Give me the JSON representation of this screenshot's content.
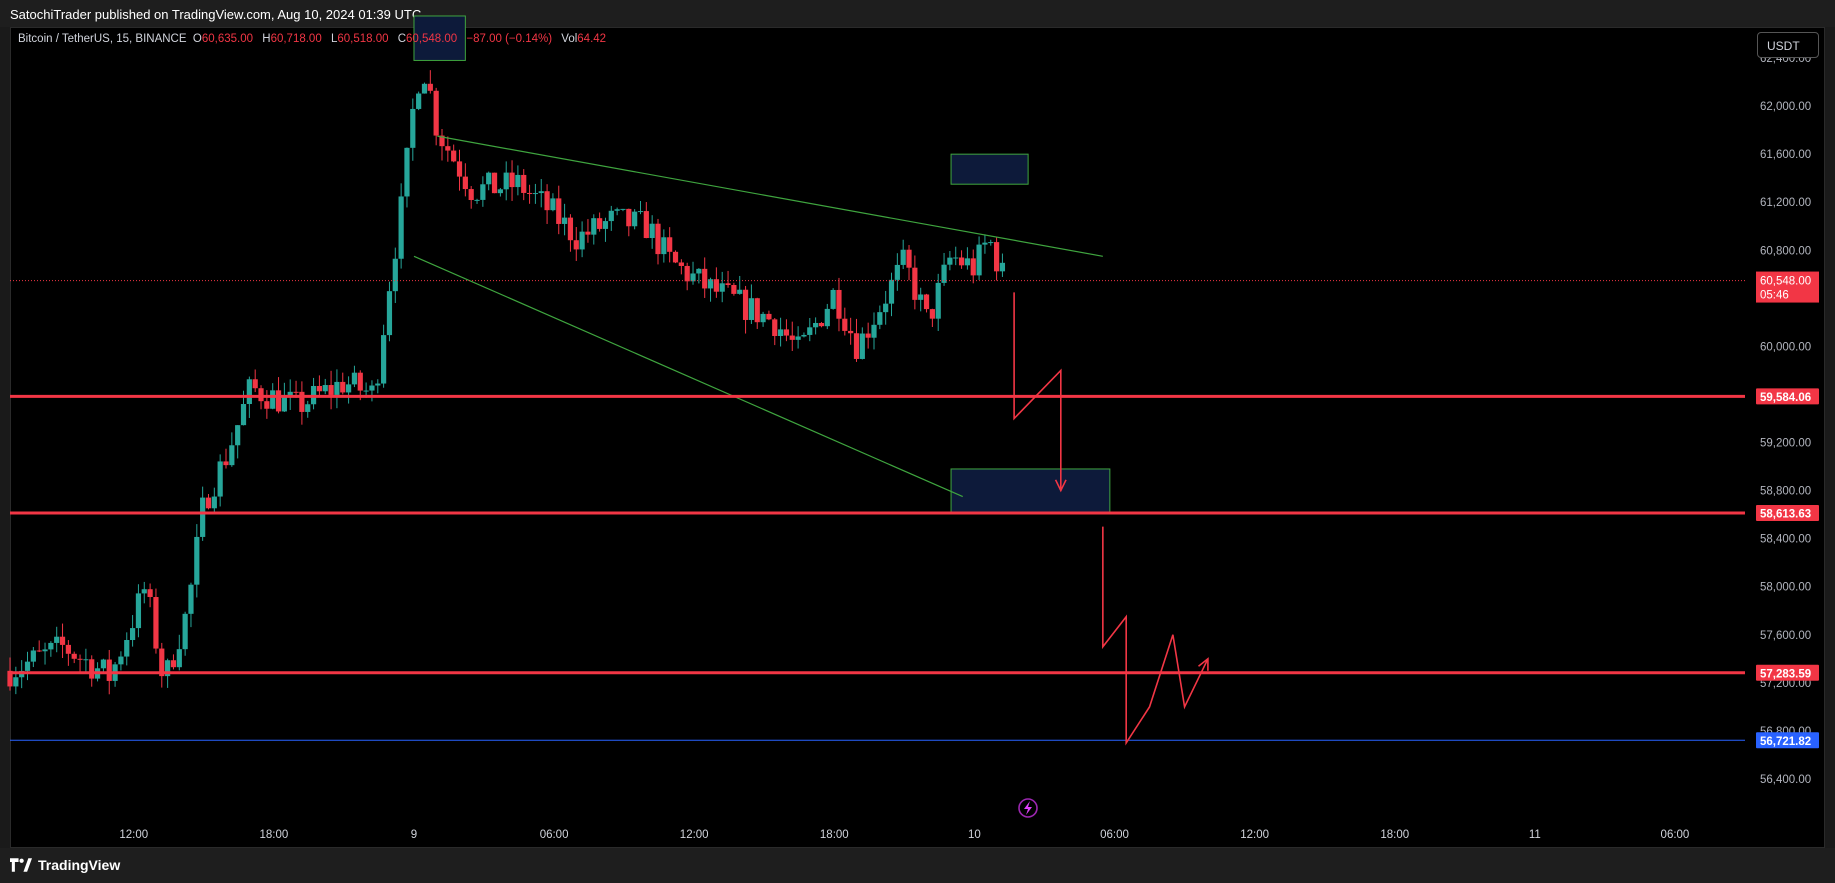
{
  "header": {
    "publisher_line": "SatochiTrader published on TradingView.com, Aug 10, 2024 01:39 UTC"
  },
  "legend": {
    "symbol": "Bitcoin / TetherUS, 15, BINANCE",
    "open_label": "O",
    "open": "60,635.00",
    "high_label": "H",
    "high": "60,718.00",
    "low_label": "L",
    "low": "60,518.00",
    "close_label": "C",
    "close": "60,548.00",
    "change": "−87.00 (−0.14%)",
    "vol_label": "Vol",
    "vol": "64.42"
  },
  "currency_button": "USDT",
  "footer": {
    "brand": "TradingView"
  },
  "colors": {
    "up": "#26a69a",
    "down": "#f23645",
    "level": "#f23645",
    "trend": "#3fa53f",
    "blue_level": "#2962ff",
    "zone_fill": "#0d1a3a"
  },
  "chart_data": {
    "type": "candlestick",
    "symbol": "BTCUSDT",
    "interval": "15",
    "ylim": [
      56150,
      62650
    ],
    "y_ticks": [
      56400,
      56800,
      57200,
      57600,
      58000,
      58400,
      58800,
      59200,
      60000,
      60800,
      61200,
      61600,
      62000,
      62400
    ],
    "y_tick_labels": [
      "56,400.00",
      "56,800.00",
      "57,200.00",
      "57,600.00",
      "58,000.00",
      "58,400.00",
      "58,800.00",
      "59,200.00",
      "60,000.00",
      "60,800.00",
      "61,200.00",
      "61,600.00",
      "62,000.00",
      "62,400.00"
    ],
    "x_ticks": [
      {
        "label": "12:00",
        "t": 12
      },
      {
        "label": "18:00",
        "t": 18
      },
      {
        "label": "9",
        "t": 24
      },
      {
        "label": "06:00",
        "t": 30
      },
      {
        "label": "12:00",
        "t": 36
      },
      {
        "label": "18:00",
        "t": 42
      },
      {
        "label": "10",
        "t": 48
      },
      {
        "label": "06:00",
        "t": 54
      },
      {
        "label": "12:00",
        "t": 60
      },
      {
        "label": "18:00",
        "t": 66
      },
      {
        "label": "11",
        "t": 72
      },
      {
        "label": "06:00",
        "t": 78
      }
    ],
    "levels": [
      {
        "value": 59584.06,
        "label": "59,584.06",
        "color": "#f23645"
      },
      {
        "value": 58613.63,
        "label": "58,613.63",
        "color": "#f23645"
      },
      {
        "value": 57283.59,
        "label": "57,283.59",
        "color": "#f23645"
      },
      {
        "value": 56721.82,
        "label": "56,721.82",
        "color": "#2962ff"
      }
    ],
    "last_price": {
      "value": 60548.0,
      "label": "60,548.00",
      "countdown": "05:46"
    },
    "anchors": [
      {
        "t": 6.7,
        "p": 57300
      },
      {
        "t": 9.0,
        "p": 57500
      },
      {
        "t": 11.0,
        "p": 57250
      },
      {
        "t": 12.5,
        "p": 58000
      },
      {
        "t": 13.3,
        "p": 57200
      },
      {
        "t": 14.3,
        "p": 57800
      },
      {
        "t": 15.0,
        "p": 58700
      },
      {
        "t": 16.0,
        "p": 59100
      },
      {
        "t": 17.0,
        "p": 59650
      },
      {
        "t": 19.0,
        "p": 59500
      },
      {
        "t": 21.0,
        "p": 59700
      },
      {
        "t": 22.3,
        "p": 59600
      },
      {
        "t": 23.0,
        "p": 60600
      },
      {
        "t": 23.5,
        "p": 61200
      },
      {
        "t": 24.1,
        "p": 62200
      },
      {
        "t": 24.5,
        "p": 62300
      },
      {
        "t": 25.0,
        "p": 61800
      },
      {
        "t": 26.5,
        "p": 61300
      },
      {
        "t": 28.5,
        "p": 61350
      },
      {
        "t": 30.0,
        "p": 61100
      },
      {
        "t": 31.0,
        "p": 60900
      },
      {
        "t": 32.5,
        "p": 61050
      },
      {
        "t": 34.0,
        "p": 61000
      },
      {
        "t": 35.0,
        "p": 60700
      },
      {
        "t": 36.5,
        "p": 60500
      },
      {
        "t": 38.0,
        "p": 60350
      },
      {
        "t": 39.5,
        "p": 60200
      },
      {
        "t": 40.5,
        "p": 59950
      },
      {
        "t": 42.0,
        "p": 60450
      },
      {
        "t": 43.0,
        "p": 60000
      },
      {
        "t": 45.0,
        "p": 60700
      },
      {
        "t": 46.0,
        "p": 60200
      },
      {
        "t": 47.0,
        "p": 60750
      },
      {
        "t": 48.0,
        "p": 60650
      },
      {
        "t": 48.6,
        "p": 60900
      },
      {
        "t": 49.3,
        "p": 60548
      }
    ],
    "trendlines": [
      {
        "t1": 25.0,
        "p1": 61750,
        "t2": 53.5,
        "p2": 60750
      },
      {
        "t1": 24.0,
        "p1": 60750,
        "t2": 47.5,
        "p2": 58750
      }
    ],
    "zones": [
      {
        "t1": 24.0,
        "p1": 62750,
        "t2": 26.2,
        "p2": 62380,
        "fill": "#0d1a3a"
      },
      {
        "t1": 47.0,
        "p1": 61600,
        "t2": 50.3,
        "p2": 61350,
        "fill": "#0d1a3a"
      },
      {
        "t1": 47.0,
        "p1": 58980,
        "t2": 53.8,
        "p2": 58613.63,
        "fill": "#0d1a3a"
      }
    ],
    "projections": [
      {
        "points": [
          [
            49.7,
            60450
          ],
          [
            49.7,
            59400
          ],
          [
            51.7,
            59800
          ],
          [
            51.7,
            58800
          ]
        ],
        "arrow": true
      },
      {
        "points": [
          [
            53.5,
            58500
          ],
          [
            53.5,
            57500
          ],
          [
            54.5,
            57750
          ],
          [
            54.5,
            56700
          ],
          [
            55.5,
            57000
          ],
          [
            56.5,
            57600
          ],
          [
            57.0,
            57000
          ],
          [
            58.0,
            57400
          ]
        ],
        "arrow": true
      }
    ],
    "x_range": [
      6.7,
      81.0
    ]
  }
}
